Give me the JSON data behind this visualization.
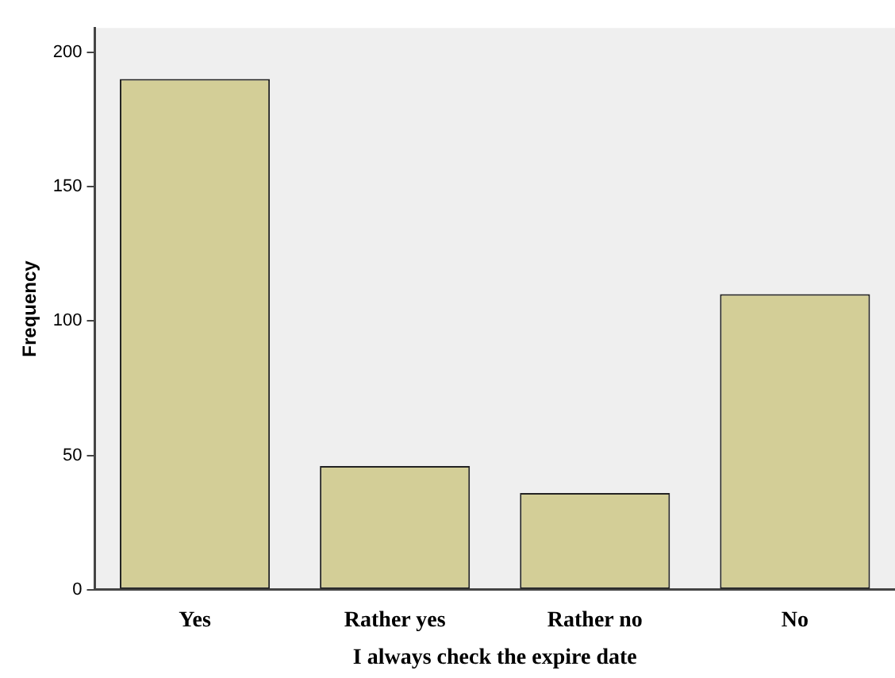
{
  "chart_data": {
    "type": "bar",
    "xlabel": "I always check the expire date",
    "ylabel": "Frequency",
    "categories": [
      "Yes",
      "Rather yes",
      "Rather no",
      "No"
    ],
    "values": [
      190,
      46,
      36,
      110
    ],
    "color": "#d3ce97",
    "ylim": [
      0,
      209
    ],
    "yticks": [
      0,
      50,
      100,
      150,
      200
    ],
    "grid": false,
    "legend": false
  }
}
